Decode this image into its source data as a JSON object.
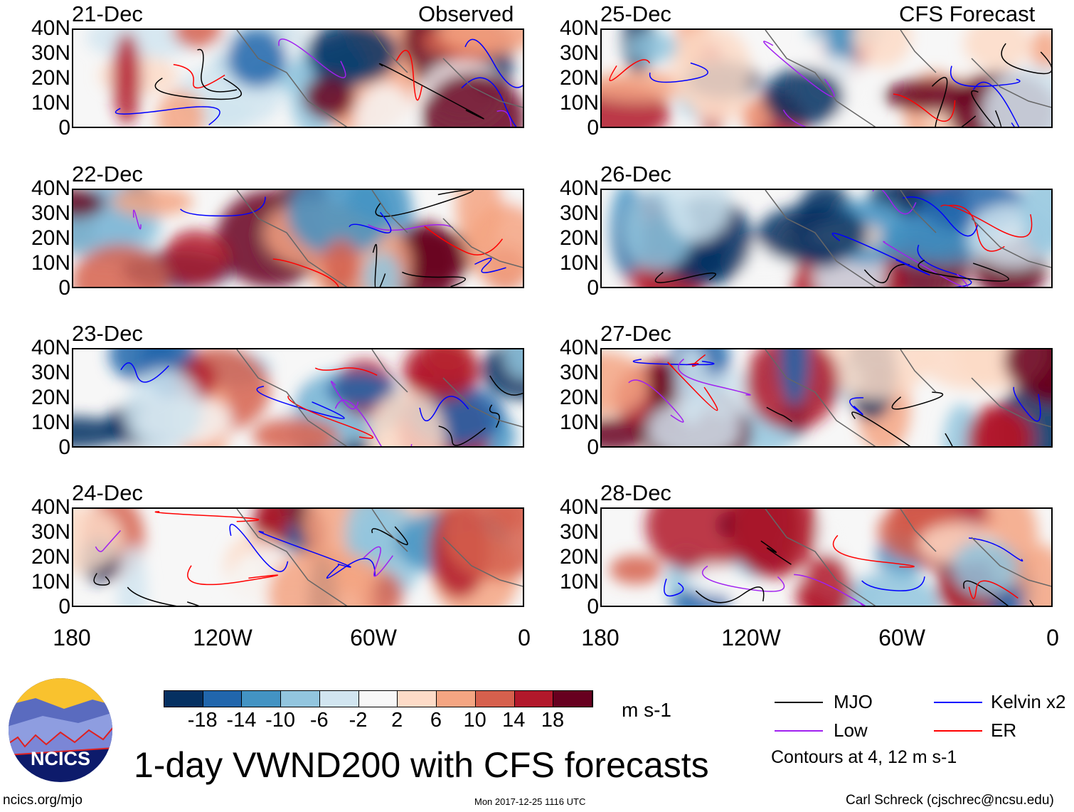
{
  "title": "1-day VWND200 with CFS forecasts",
  "left_header": "Observed",
  "right_header": "CFS Forecast",
  "panels_left": [
    "21-Dec",
    "22-Dec",
    "23-Dec",
    "24-Dec"
  ],
  "panels_right": [
    "25-Dec",
    "26-Dec",
    "27-Dec",
    "28-Dec"
  ],
  "lat_labels": [
    "40N",
    "30N",
    "20N",
    "10N",
    "0"
  ],
  "lon_labels": [
    "180",
    "120W",
    "60W",
    "0"
  ],
  "colorbar": {
    "colors": [
      "#053061",
      "#2166ac",
      "#4393c3",
      "#92c5de",
      "#d1e5f0",
      "#f7f7f7",
      "#fddbc7",
      "#f4a582",
      "#d6604d",
      "#b2182b",
      "#67001f"
    ],
    "labels": [
      "-18",
      "-14",
      "-10",
      "-6",
      "-2",
      "2",
      "6",
      "10",
      "14",
      "18"
    ],
    "units": "m s-1"
  },
  "legend": {
    "items": [
      {
        "label": "MJO",
        "color": "#000000"
      },
      {
        "label": "Kelvin x2",
        "color": "#0000ff"
      },
      {
        "label": "Low",
        "color": "#a020f0"
      },
      {
        "label": "ER",
        "color": "#ff0000"
      }
    ],
    "note": "Contours at 4, 12 m s-1"
  },
  "logo_text": "NCICS",
  "footer": {
    "left": "ncics.org/mjo",
    "center": "Mon 2017-12-25 1116 UTC",
    "right": "Carl Schreck (cjschrec@ncsu.edu)"
  }
}
